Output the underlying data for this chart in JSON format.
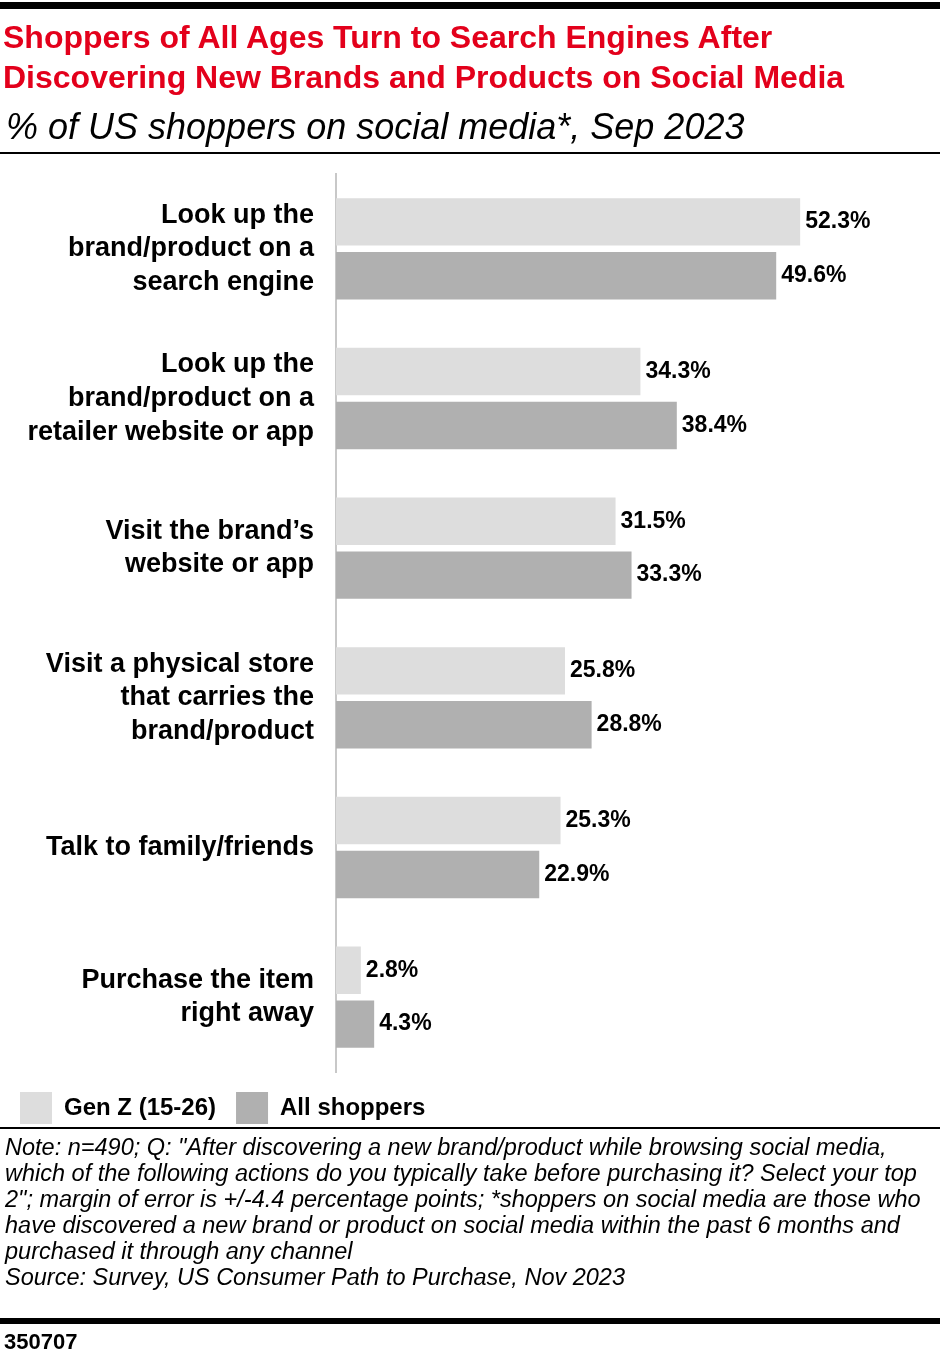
{
  "chart_data": {
    "type": "bar",
    "orientation": "horizontal",
    "title": "Shoppers of All Ages Turn to Search Engines After Discovering New Brands and Products on Social Media",
    "subtitle": "% of US shoppers on social media*, Sep 2023",
    "categories": [
      "Look up the brand/product on a search engine",
      "Look up the brand/product on a retailer website or app",
      "Visit the brand’s website or app",
      "Visit a physical store that carries the brand/product",
      "Talk to family/friends",
      "Purchase the item right away"
    ],
    "series": [
      {
        "name": "Gen Z (15-26)",
        "color": "#dddddd",
        "values": [
          52.3,
          34.3,
          31.5,
          25.8,
          25.3,
          2.8
        ],
        "value_labels": [
          "52.3%",
          "34.3%",
          "31.5%",
          "25.8%",
          "25.3%",
          "2.8%"
        ]
      },
      {
        "name": "All shoppers",
        "color": "#b0b0b0",
        "values": [
          49.6,
          38.4,
          33.3,
          28.8,
          22.9,
          4.3
        ],
        "value_labels": [
          "49.6%",
          "38.4%",
          "33.3%",
          "28.8%",
          "22.9%",
          "4.3%"
        ]
      }
    ],
    "legend": "bottom left",
    "tick_labels": "y",
    "annotations": [
      "Note: n=490; Q: \"After discovering a new brand/product while browsing social media, which of the following actions do you typically take before purchasing it? Select your top 2\"; margin of error is +/-4.4 percentage points; *shoppers on social media are those who have discovered a new brand or product on social media within the past 6 months and purchased it through any channel",
      "Source: Survey, US Consumer Path to Purchase, Nov 2023",
      "350707"
    ]
  }
}
